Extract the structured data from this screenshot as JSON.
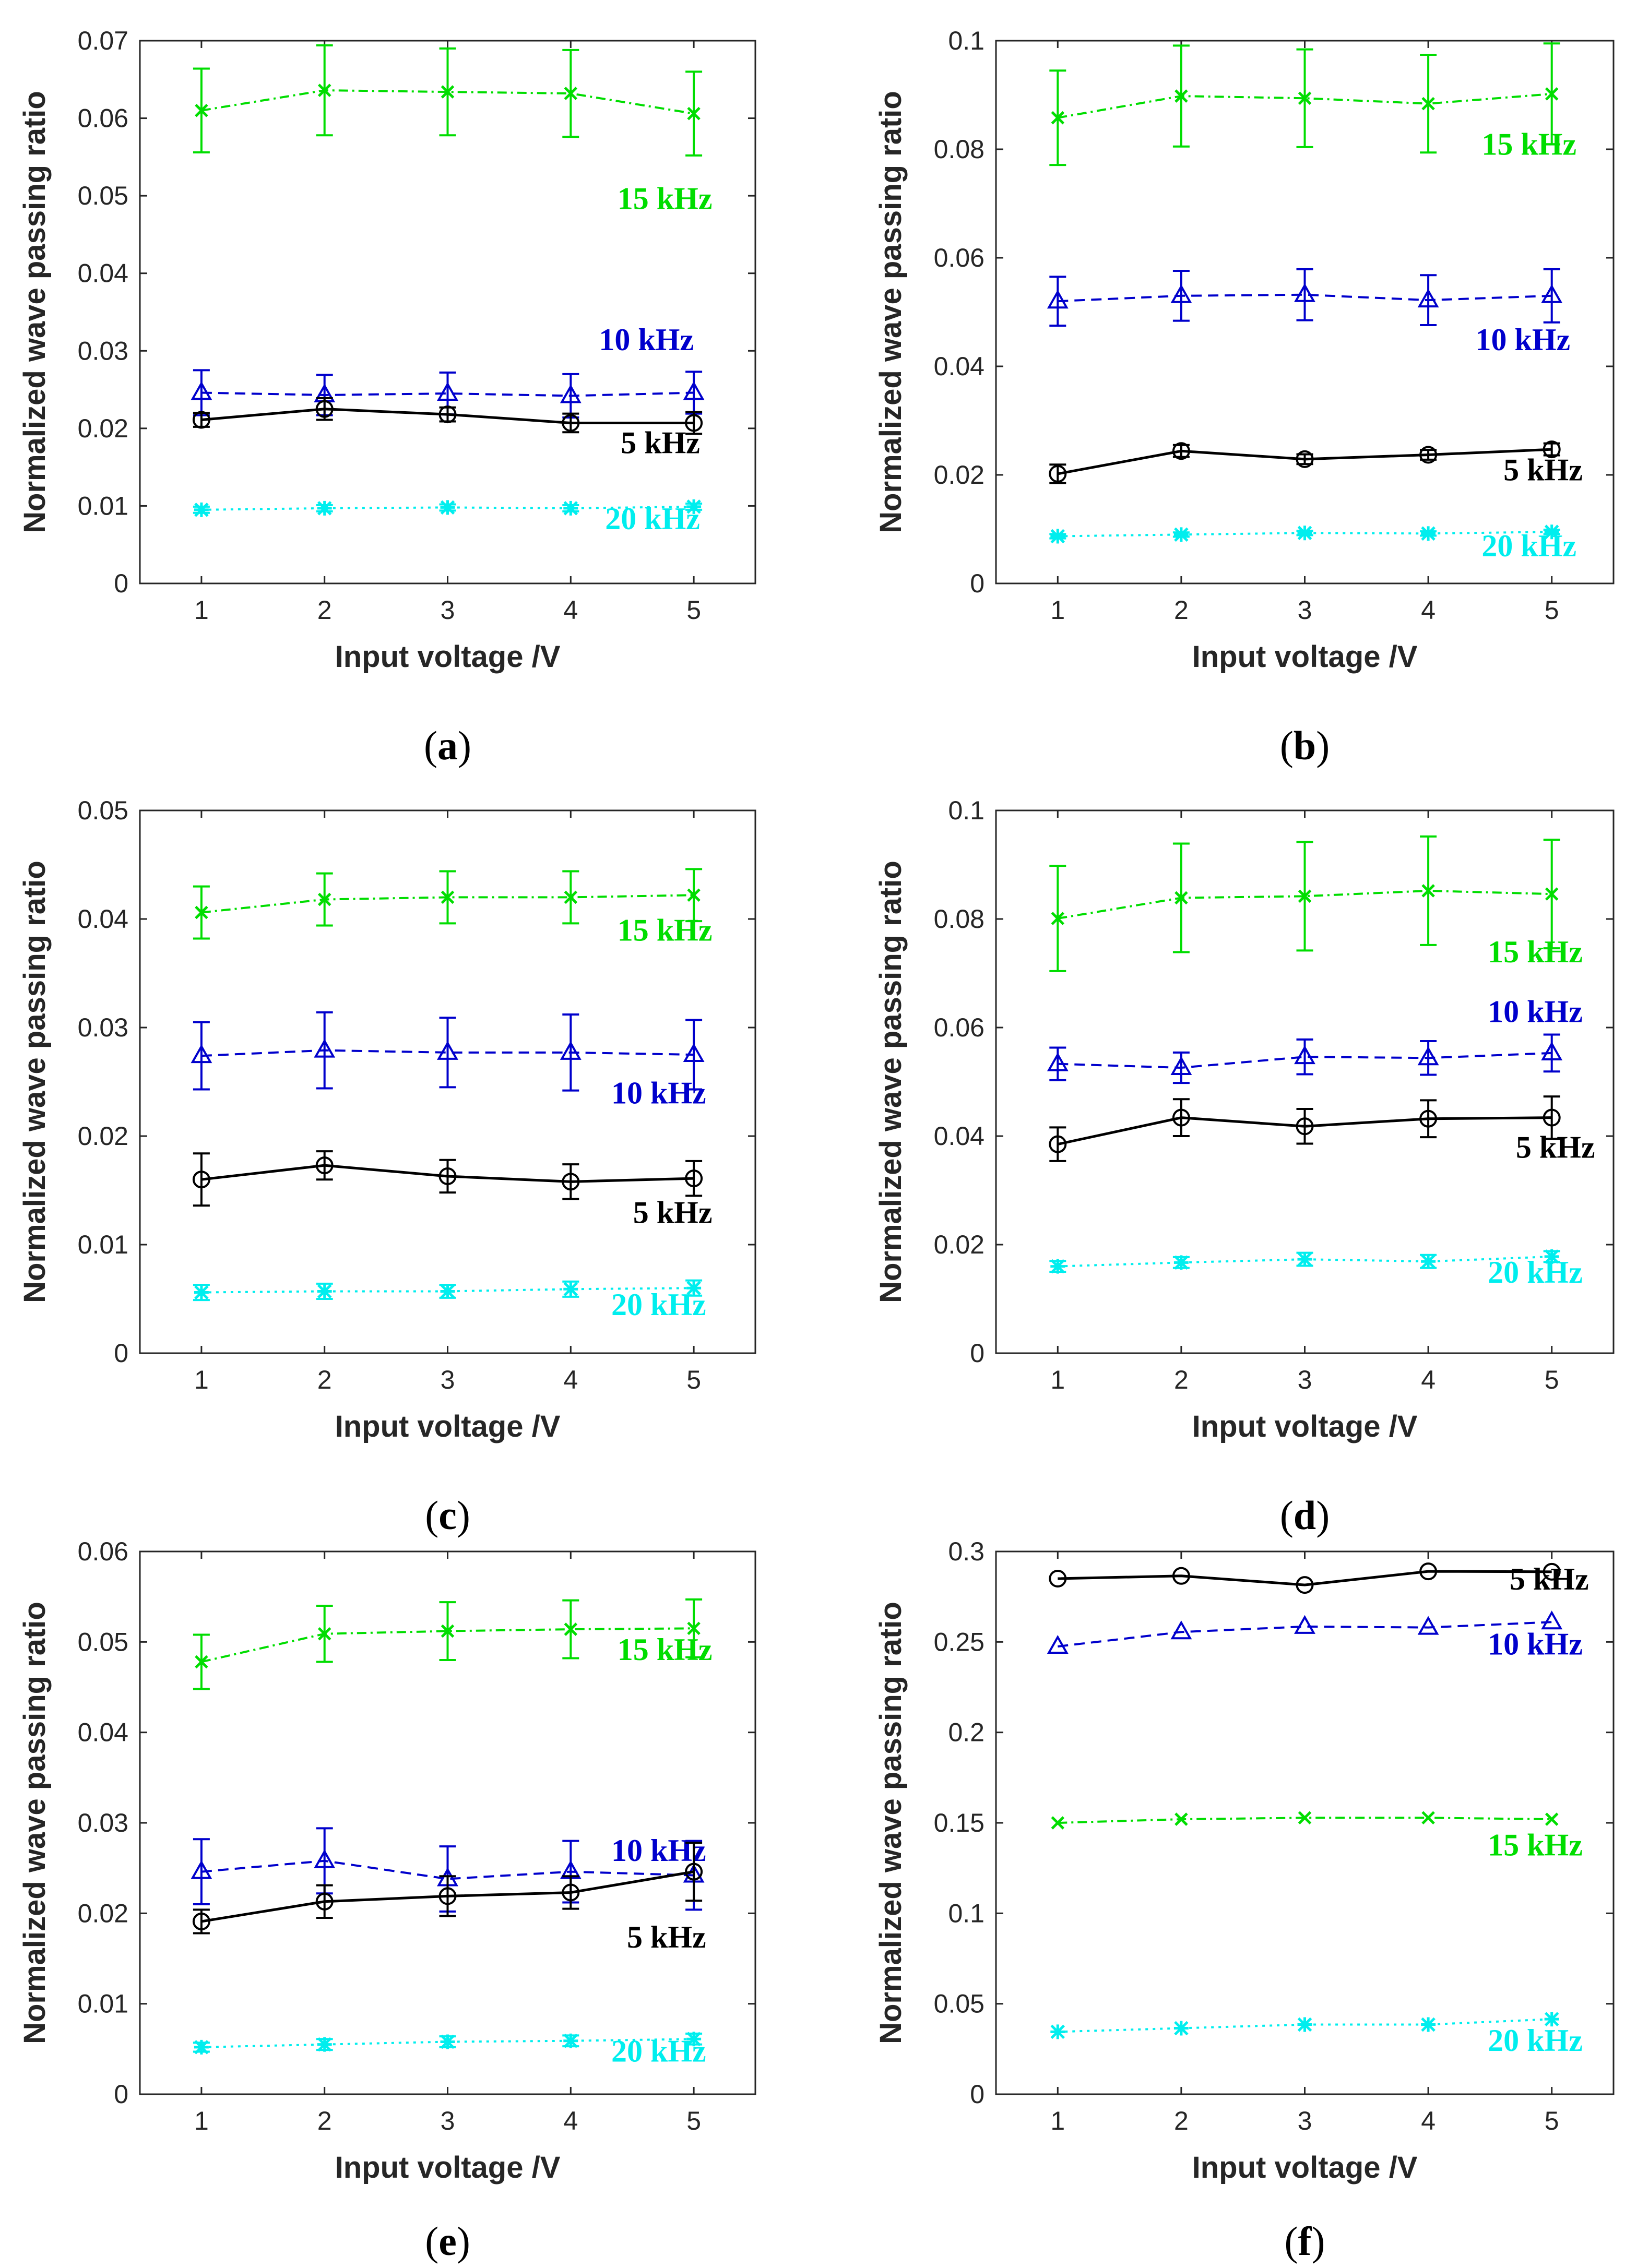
{
  "figure": {
    "xlabel": "Input voltage /V",
    "ylabel": "Normalized wave passing ratio"
  },
  "colors": {
    "5 kHz": "#000000",
    "10 kHz": "#0000cc",
    "15 kHz": "#00dd00",
    "20 kHz": "#00eeee"
  },
  "chart_data": [
    {
      "type": "line",
      "caption_letter": "a",
      "x": [
        1,
        2,
        3,
        4,
        5
      ],
      "ylim": [
        0,
        0.07
      ],
      "yticks": [
        0,
        0.01,
        0.02,
        0.03,
        0.04,
        0.05,
        0.06,
        0.07
      ],
      "ytick_labels": [
        "0",
        "0.01",
        "0.02",
        "0.03",
        "0.04",
        "0.05",
        "0.06",
        "0.07"
      ],
      "series": [
        {
          "name": "15 kHz",
          "label": "15 kHz",
          "values": [
            0.061,
            0.0636,
            0.0634,
            0.0632,
            0.0606
          ],
          "errors": [
            0.0054,
            0.0058,
            0.0056,
            0.0056,
            0.0054
          ]
        },
        {
          "name": "10 kHz",
          "label": "10 kHz",
          "values": [
            0.0246,
            0.0243,
            0.0245,
            0.0242,
            0.0246
          ],
          "errors": [
            0.0029,
            0.0026,
            0.0027,
            0.0028,
            0.0027
          ]
        },
        {
          "name": "5 kHz",
          "label": "5 kHz",
          "values": [
            0.0211,
            0.0225,
            0.0218,
            0.0207,
            0.0207
          ],
          "errors": [
            0.0009,
            0.0014,
            0.0009,
            0.0012,
            0.0014
          ]
        },
        {
          "name": "20 kHz",
          "label": "20 kHz",
          "values": [
            0.0095,
            0.0097,
            0.0098,
            0.0097,
            0.0099
          ],
          "errors": [
            0.0004,
            0.0004,
            0.0004,
            0.0004,
            0.0004
          ]
        }
      ]
    },
    {
      "type": "line",
      "caption_letter": "b",
      "x": [
        1,
        2,
        3,
        4,
        5
      ],
      "ylim": [
        0,
        0.1
      ],
      "yticks": [
        0,
        0.02,
        0.04,
        0.06,
        0.08,
        0.1
      ],
      "ytick_labels": [
        "0",
        "0.02",
        "0.04",
        "0.06",
        "0.08",
        "0.1"
      ],
      "series": [
        {
          "name": "15 kHz",
          "label": "15 kHz",
          "values": [
            0.0858,
            0.0898,
            0.0894,
            0.0884,
            0.0902
          ],
          "errors": [
            0.0087,
            0.0093,
            0.009,
            0.009,
            0.0093
          ]
        },
        {
          "name": "10 kHz",
          "label": "10 kHz",
          "values": [
            0.052,
            0.053,
            0.0532,
            0.0522,
            0.053
          ],
          "errors": [
            0.0045,
            0.0046,
            0.0047,
            0.0046,
            0.0049
          ]
        },
        {
          "name": "5 kHz",
          "label": "5 kHz",
          "values": [
            0.0202,
            0.0244,
            0.0229,
            0.0237,
            0.0247
          ],
          "errors": [
            0.0017,
            0.0011,
            0.0009,
            0.0009,
            0.0011
          ]
        },
        {
          "name": "20 kHz",
          "label": "20 kHz",
          "values": [
            0.0087,
            0.009,
            0.0093,
            0.0092,
            0.0095
          ],
          "errors": [
            0.0004,
            0.0004,
            0.0004,
            0.0004,
            0.0004
          ]
        }
      ]
    },
    {
      "type": "line",
      "caption_letter": "c",
      "x": [
        1,
        2,
        3,
        4,
        5
      ],
      "ylim": [
        0,
        0.05
      ],
      "yticks": [
        0,
        0.01,
        0.02,
        0.03,
        0.04,
        0.05
      ],
      "ytick_labels": [
        "0",
        "0.01",
        "0.02",
        "0.03",
        "0.04",
        "0.05"
      ],
      "series": [
        {
          "name": "15 kHz",
          "label": "15 kHz",
          "values": [
            0.0406,
            0.0418,
            0.042,
            0.042,
            0.0422
          ],
          "errors": [
            0.0024,
            0.0024,
            0.0024,
            0.0024,
            0.0024
          ]
        },
        {
          "name": "10 kHz",
          "label": "10 kHz",
          "values": [
            0.0274,
            0.0279,
            0.0277,
            0.0277,
            0.0275
          ],
          "errors": [
            0.0031,
            0.0035,
            0.0032,
            0.0035,
            0.0032
          ]
        },
        {
          "name": "5 kHz",
          "label": "5 kHz",
          "values": [
            0.016,
            0.0173,
            0.0163,
            0.0158,
            0.0161
          ],
          "errors": [
            0.0024,
            0.0013,
            0.0015,
            0.0016,
            0.0016
          ]
        },
        {
          "name": "20 kHz",
          "label": "20 kHz",
          "values": [
            0.0056,
            0.0057,
            0.0057,
            0.0059,
            0.006
          ],
          "errors": [
            0.0007,
            0.0007,
            0.0006,
            0.0007,
            0.0007
          ]
        }
      ]
    },
    {
      "type": "line",
      "caption_letter": "d",
      "x": [
        1,
        2,
        3,
        4,
        5
      ],
      "ylim": [
        0,
        0.1
      ],
      "yticks": [
        0,
        0.02,
        0.04,
        0.06,
        0.08,
        0.1
      ],
      "ytick_labels": [
        "0",
        "0.02",
        "0.04",
        "0.06",
        "0.08",
        "0.1"
      ],
      "series": [
        {
          "name": "15 kHz",
          "label": "15 kHz",
          "values": [
            0.0801,
            0.0839,
            0.0842,
            0.0852,
            0.0846
          ],
          "errors": [
            0.0097,
            0.01,
            0.01,
            0.01,
            0.01
          ]
        },
        {
          "name": "10 kHz",
          "label": "10 kHz",
          "values": [
            0.0533,
            0.0526,
            0.0546,
            0.0544,
            0.0553
          ],
          "errors": [
            0.003,
            0.0028,
            0.0032,
            0.0031,
            0.0034
          ]
        },
        {
          "name": "5 kHz",
          "label": "5 kHz",
          "values": [
            0.0385,
            0.0434,
            0.0418,
            0.0432,
            0.0434
          ],
          "errors": [
            0.0031,
            0.0034,
            0.0032,
            0.0034,
            0.0039
          ]
        },
        {
          "name": "20 kHz",
          "label": "20 kHz",
          "values": [
            0.016,
            0.0167,
            0.0173,
            0.0169,
            0.0178
          ],
          "errors": [
            0.001,
            0.001,
            0.0012,
            0.0012,
            0.001
          ]
        }
      ]
    },
    {
      "type": "line",
      "caption_letter": "e",
      "x": [
        1,
        2,
        3,
        4,
        5
      ],
      "ylim": [
        0,
        0.06
      ],
      "yticks": [
        0,
        0.01,
        0.02,
        0.03,
        0.04,
        0.05,
        0.06
      ],
      "ytick_labels": [
        "0",
        "0.01",
        "0.02",
        "0.03",
        "0.04",
        "0.05",
        "0.06"
      ],
      "series": [
        {
          "name": "15 kHz",
          "label": "15 kHz",
          "values": [
            0.0478,
            0.0509,
            0.0512,
            0.0514,
            0.0515
          ],
          "errors": [
            0.003,
            0.0031,
            0.0032,
            0.0032,
            0.0032
          ]
        },
        {
          "name": "10 kHz",
          "label": "10 kHz",
          "values": [
            0.0246,
            0.0258,
            0.0238,
            0.0246,
            0.0242
          ],
          "errors": [
            0.0036,
            0.0036,
            0.0036,
            0.0034,
            0.0038
          ]
        },
        {
          "name": "5 kHz",
          "label": "5 kHz",
          "values": [
            0.0191,
            0.0213,
            0.0219,
            0.0223,
            0.0246
          ],
          "errors": [
            0.0013,
            0.0018,
            0.0022,
            0.0018,
            0.0032
          ]
        },
        {
          "name": "20 kHz",
          "label": "20 kHz",
          "values": [
            0.0052,
            0.0055,
            0.0058,
            0.0059,
            0.0061
          ],
          "errors": [
            0.0005,
            0.0006,
            0.0006,
            0.0006,
            0.0006
          ]
        }
      ]
    },
    {
      "type": "line",
      "caption_letter": "f",
      "x": [
        1,
        2,
        3,
        4,
        5
      ],
      "ylim": [
        0,
        0.3
      ],
      "yticks": [
        0,
        0.05,
        0.1,
        0.15,
        0.2,
        0.25,
        0.3
      ],
      "ytick_labels": [
        "0",
        "0.05",
        "0.1",
        "0.15",
        "0.2",
        "0.25",
        "0.3"
      ],
      "series": [
        {
          "name": "5 kHz",
          "label": "5 kHz",
          "values": [
            0.285,
            0.2865,
            0.2815,
            0.289,
            0.2888
          ],
          "errors": [
            0,
            0,
            0,
            0,
            0
          ]
        },
        {
          "name": "10 kHz",
          "label": "10 kHz",
          "values": [
            0.2475,
            0.2555,
            0.2585,
            0.258,
            0.261
          ],
          "errors": [
            0,
            0,
            0,
            0,
            0
          ]
        },
        {
          "name": "15 kHz",
          "label": "15 kHz",
          "values": [
            0.15,
            0.152,
            0.1528,
            0.1528,
            0.152
          ],
          "errors": [
            0,
            0,
            0,
            0,
            0
          ]
        },
        {
          "name": "20 kHz",
          "label": "20 kHz",
          "values": [
            0.0345,
            0.0365,
            0.0385,
            0.0385,
            0.0415
          ],
          "errors": [
            0,
            0,
            0,
            0,
            0
          ]
        }
      ]
    }
  ]
}
